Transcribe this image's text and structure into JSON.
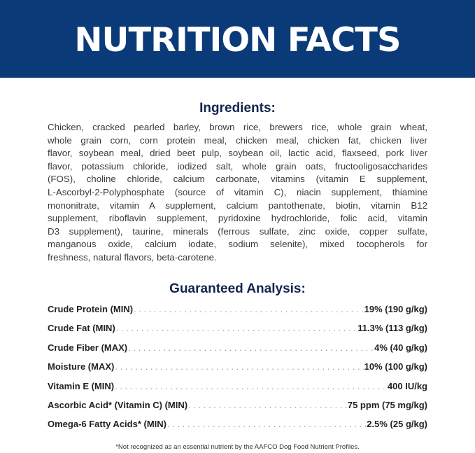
{
  "header": {
    "title": "NUTRITION FACTS",
    "background_color": "#0b3a78"
  },
  "ingredients": {
    "heading": "Ingredients:",
    "lines": [
      "Chicken, cracked pearled barley, brown rice, brewers rice, whole grain wheat,",
      "whole grain corn, corn protein meal, chicken meal, chicken fat, chicken liver",
      "flavor, soybean meal, dried beet pulp, soybean oil, lactic acid, flaxseed, pork liver",
      "flavor, potassium chloride, iodized salt, whole grain oats, fructooligosaccharides",
      "(FOS), choline chloride, calcium carbonate, vitamins (vitamin E supplement,",
      "L-Ascorbyl-2-Polyphosphate (source of vitamin C), niacin supplement, thiamine",
      "mononitrate, vitamin A supplement, calcium pantothenate, biotin, vitamin B12",
      "supplement, riboflavin supplement, pyridoxine hydrochloride, folic acid, vitamin",
      "D3 supplement), taurine, minerals (ferrous sulfate, zinc oxide, copper sulfate,",
      "manganous oxide, calcium iodate, sodium selenite), mixed tocopherols for",
      "freshness, natural flavors, beta-carotene."
    ]
  },
  "analysis": {
    "heading": "Guaranteed Analysis:",
    "rows": [
      {
        "label": "Crude Protein (MIN)",
        "value": "19% (190 g/kg)"
      },
      {
        "label": "Crude Fat (MIN)",
        "value": "11.3% (113 g/kg)"
      },
      {
        "label": "Crude Fiber (MAX)",
        "value": "4% (40 g/kg)"
      },
      {
        "label": "Moisture (MAX)",
        "value": "10% (100 g/kg)"
      },
      {
        "label": "Vitamin E (MIN)",
        "value": "400 IU/kg"
      },
      {
        "label": "Ascorbic Acid* (Vitamin C) (MIN)",
        "value": "75 ppm (75 mg/kg)"
      },
      {
        "label": "Omega-6 Fatty Acids* (MIN)",
        "value": "2.5% (25 g/kg)"
      }
    ]
  },
  "footnote": "*Not recognized as an essential nutrient by the AAFCO Dog Food Nutrient Profiles."
}
